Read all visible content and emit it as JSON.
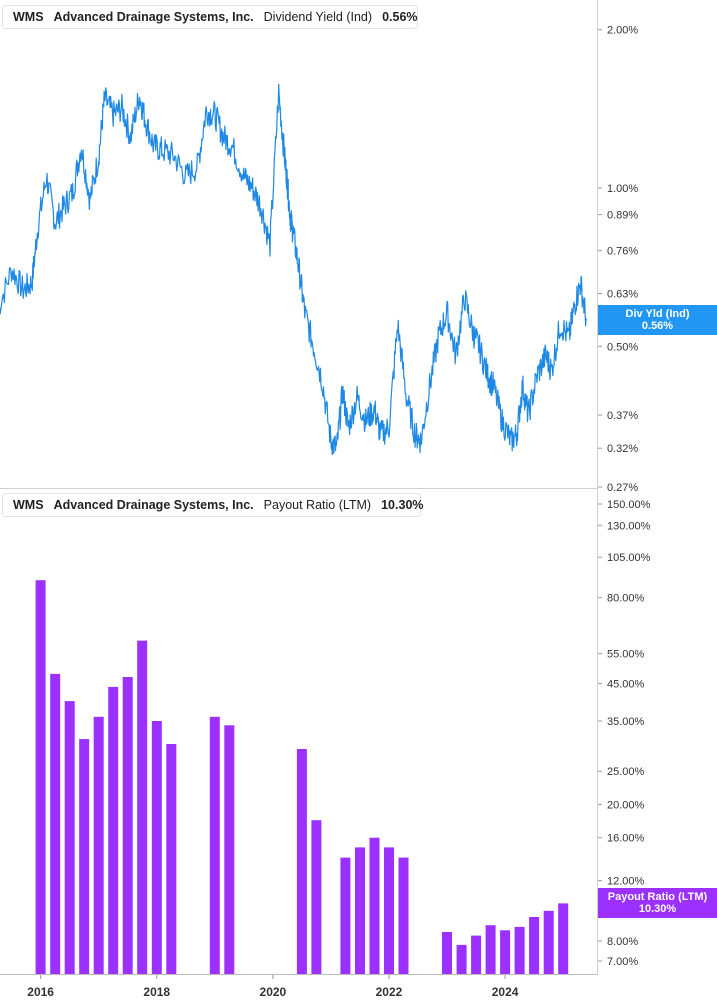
{
  "ticker": "WMS",
  "company": "Advanced Drainage Systems, Inc.",
  "colors": {
    "dividend": "#1e88e5",
    "payout": "#9b30ff",
    "tag_dividend": "#2196f3",
    "tag_payout": "#9b30ff"
  },
  "chart_data": [
    {
      "type": "line",
      "metric_label": "Dividend Yield (Ind)",
      "current_value": "0.56%",
      "tag_label": "Div Yld (Ind)",
      "scale": "log",
      "ylim": [
        0.27,
        2.4
      ],
      "y_ticks": [
        "2.00%",
        "1.00%",
        "0.89%",
        "0.76%",
        "0.63%",
        "0.50%",
        "0.37%",
        "0.32%",
        "0.27%"
      ],
      "y_tick_values": [
        2.0,
        1.0,
        0.89,
        0.76,
        0.63,
        0.5,
        0.37,
        0.32,
        0.27
      ],
      "x_start": 2015.25,
      "x_end": 2025.4,
      "series": [
        {
          "x": [
            2015.25,
            2015.5,
            2015.7,
            2015.85,
            2015.95,
            2016.1,
            2016.25,
            2016.4,
            2016.55,
            2016.7,
            2016.85,
            2017.0,
            2017.1,
            2017.25,
            2017.4,
            2017.55,
            2017.7,
            2017.8,
            2017.95,
            2018.1,
            2018.3,
            2018.5,
            2018.7,
            2018.85,
            2019.0,
            2019.15,
            2019.3,
            2019.5,
            2019.65,
            2019.8,
            2019.95,
            2020.1,
            2020.2,
            2020.25,
            2020.3,
            2020.35,
            2020.45,
            2020.55,
            2020.7,
            2020.85,
            2021.0,
            2021.1,
            2021.2,
            2021.3,
            2021.45,
            2021.6,
            2021.75,
            2021.85,
            2022.0,
            2022.15,
            2022.3,
            2022.45,
            2022.55,
            2022.7,
            2022.85,
            2023.0,
            2023.15,
            2023.3,
            2023.45,
            2023.55,
            2023.7,
            2023.8,
            2023.95,
            2024.1,
            2024.2,
            2024.3,
            2024.4,
            2024.55,
            2024.7,
            2024.8,
            2024.95,
            2025.1,
            2025.2,
            2025.3,
            2025.4
          ],
          "y": [
            0.58,
            0.7,
            0.64,
            0.66,
            0.84,
            1.05,
            0.86,
            0.92,
            0.98,
            1.2,
            0.95,
            1.15,
            1.48,
            1.38,
            1.42,
            1.25,
            1.5,
            1.35,
            1.2,
            1.18,
            1.15,
            1.05,
            1.1,
            1.4,
            1.38,
            1.25,
            1.2,
            1.05,
            1.0,
            0.92,
            0.78,
            1.52,
            1.15,
            1.02,
            0.88,
            0.82,
            0.7,
            0.58,
            0.5,
            0.43,
            0.33,
            0.32,
            0.41,
            0.35,
            0.4,
            0.36,
            0.38,
            0.34,
            0.35,
            0.55,
            0.4,
            0.34,
            0.33,
            0.42,
            0.52,
            0.58,
            0.48,
            0.62,
            0.53,
            0.5,
            0.44,
            0.42,
            0.36,
            0.33,
            0.34,
            0.42,
            0.37,
            0.44,
            0.48,
            0.45,
            0.55,
            0.52,
            0.6,
            0.66,
            0.56
          ]
        }
      ]
    },
    {
      "type": "bar",
      "metric_label": "Payout Ratio (LTM)",
      "current_value": "10.30%",
      "tag_label": "Payout Ratio (LTM)",
      "scale": "log",
      "ylim": [
        6.5,
        165
      ],
      "y_ticks": [
        "150.00%",
        "130.00%",
        "105.00%",
        "80.00%",
        "55.00%",
        "45.00%",
        "35.00%",
        "25.00%",
        "20.00%",
        "16.00%",
        "12.00%",
        "8.00%",
        "7.00%"
      ],
      "y_tick_values": [
        150,
        130,
        105,
        80,
        55,
        45,
        35,
        25,
        20,
        16,
        12,
        8,
        7
      ],
      "x_ticks": [
        "2016",
        "2018",
        "2020",
        "2022",
        "2024"
      ],
      "x_tick_values": [
        2016,
        2018,
        2020,
        2022,
        2024
      ],
      "series": [
        {
          "x": [
            2016.0,
            2016.25,
            2016.5,
            2016.75,
            2017.0,
            2017.25,
            2017.5,
            2017.75,
            2018.0,
            2018.25,
            2019.0,
            2019.25,
            2020.5,
            2020.75,
            2021.25,
            2021.5,
            2021.75,
            2022.0,
            2022.25,
            2023.0,
            2023.25,
            2023.5,
            2023.75,
            2024.0,
            2024.25,
            2024.5,
            2024.75,
            2025.0
          ],
          "values": [
            90,
            48,
            40,
            31,
            36,
            44,
            47,
            60,
            35,
            30,
            36,
            34,
            29,
            18,
            14,
            15,
            16,
            15,
            14,
            8.5,
            7.8,
            8.3,
            8.9,
            8.6,
            8.8,
            9.4,
            9.8,
            10.3
          ]
        }
      ]
    }
  ]
}
